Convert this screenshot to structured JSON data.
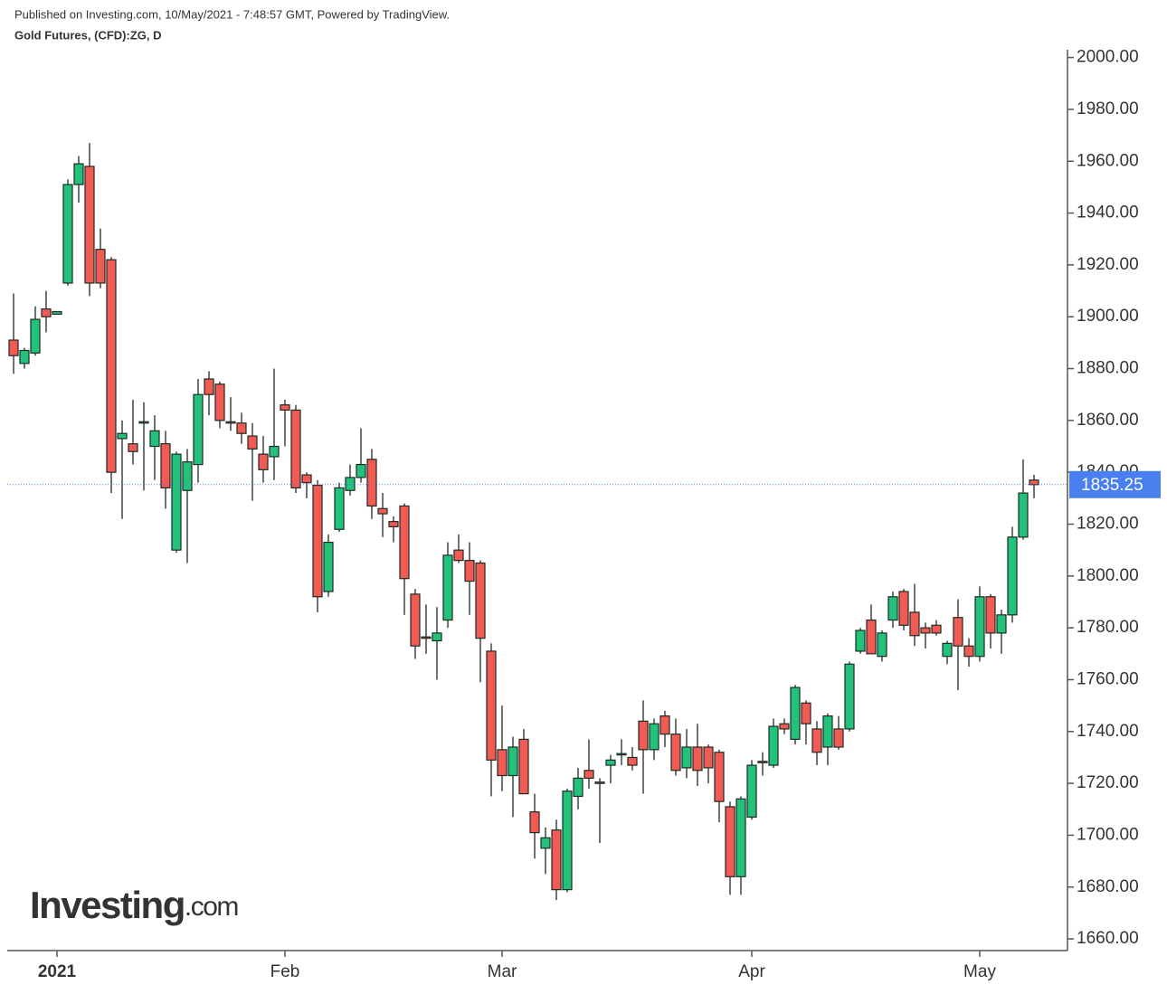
{
  "header": {
    "published": "Published on Investing.com, 10/May/2021 - 7:48:57 GMT, Powered by TradingView.",
    "symbol": "Gold Futures, (CFD):ZG, D"
  },
  "logo": {
    "brand": "Investing",
    "suffix": ".com"
  },
  "chart_data": {
    "type": "candlestick",
    "categories": [
      null,
      null,
      null,
      null,
      "2021",
      null,
      null,
      null,
      null,
      null,
      null,
      null,
      null,
      null,
      null,
      null,
      null,
      null,
      null,
      null,
      null,
      null,
      null,
      null,
      null,
      "Feb",
      null,
      null,
      null,
      null,
      null,
      null,
      null,
      null,
      null,
      null,
      null,
      null,
      null,
      null,
      null,
      null,
      null,
      null,
      null,
      "Mar",
      null,
      null,
      null,
      null,
      null,
      null,
      null,
      null,
      null,
      null,
      null,
      null,
      null,
      null,
      null,
      null,
      null,
      null,
      null,
      null,
      null,
      null,
      "Apr",
      null,
      null,
      null,
      null,
      null,
      null,
      null,
      null,
      null,
      null,
      null,
      null,
      null,
      null,
      null,
      null,
      null,
      null,
      null,
      null,
      "May",
      null,
      null,
      null,
      null,
      null
    ],
    "open": [
      1891,
      1882,
      1886,
      1903,
      1901,
      1913,
      1951,
      1958,
      1926,
      1922,
      1853,
      1851,
      1859,
      1850,
      1851,
      1810,
      1833,
      1843,
      1876,
      1874,
      1859.5,
      1859,
      1854,
      1847,
      1846,
      1866,
      1864,
      1839,
      1835,
      1794,
      1818,
      1833,
      1838,
      1845,
      1826,
      1821,
      1827,
      1793,
      1776.5,
      1775,
      1783,
      1810,
      1806,
      1805,
      1771,
      1733,
      1723,
      1737,
      1709,
      1695,
      1702,
      1679,
      1715,
      1725,
      1720.5,
      1727,
      1731,
      1730,
      1744,
      1733,
      1746,
      1739,
      1726,
      1734,
      1734,
      1732,
      1711,
      1684,
      1707,
      1728.5,
      1727,
      1743,
      1737,
      1751,
      1741,
      1734,
      1741,
      1741,
      1771,
      1783,
      1769,
      1783,
      1794,
      1786,
      1780,
      1781,
      1769,
      1784,
      1773,
      1769,
      1792,
      1778,
      1785,
      1815,
      1837
    ],
    "high": [
      1909,
      1888,
      1904,
      1910,
      1902,
      1953,
      1962,
      1967,
      1934,
      1923,
      1860,
      1868,
      1867,
      1862,
      1856,
      1848,
      1849,
      1876,
      1879,
      1875,
      1869,
      1863,
      1859,
      1854,
      1880,
      1868,
      1866,
      1840,
      1837,
      1816,
      1836,
      1843,
      1857,
      1849,
      1832,
      1823,
      1828,
      1795,
      1789,
      1788,
      1813,
      1816,
      1813,
      1806,
      1774,
      1750,
      1738,
      1741,
      1716,
      1703,
      1706,
      1718,
      1726,
      1737,
      1722,
      1731,
      1737,
      1734,
      1752,
      1745,
      1748,
      1745,
      1741,
      1743,
      1735,
      1733,
      1713,
      1715,
      1729,
      1732,
      1745,
      1745,
      1758,
      1752,
      1744,
      1747,
      1746,
      1767,
      1780,
      1789,
      1779,
      1794,
      1795,
      1797,
      1782,
      1783,
      1775,
      1791,
      1776,
      1796,
      1793,
      1787,
      1819,
      1845,
      1839
    ],
    "low": [
      1878,
      1880,
      1885,
      1894,
      1901,
      1912,
      1944,
      1908,
      1911,
      1832,
      1822,
      1843,
      1833,
      1837,
      1826,
      1809,
      1805,
      1836,
      1862,
      1857,
      1856,
      1851,
      1829,
      1836,
      1837,
      1850,
      1832,
      1830,
      1786,
      1792,
      1817,
      1831,
      1836,
      1822,
      1815,
      1813,
      1785,
      1768,
      1770,
      1760,
      1780,
      1805,
      1785,
      1759,
      1715,
      1717,
      1707,
      1716,
      1691,
      1685,
      1675,
      1678,
      1710,
      1718,
      1697,
      1720,
      1727,
      1725,
      1716,
      1729,
      1734,
      1723,
      1722,
      1719,
      1720,
      1705,
      1677,
      1677,
      1706,
      1723,
      1726,
      1739,
      1735,
      1735,
      1727,
      1727,
      1733,
      1740,
      1770,
      1770,
      1767,
      1780,
      1779,
      1773,
      1772,
      1777,
      1766,
      1756,
      1765,
      1767,
      1772,
      1770,
      1782,
      1814,
      1830
    ],
    "close": [
      1885,
      1887,
      1899,
      1900,
      1902,
      1951,
      1959,
      1913,
      1913,
      1840,
      1855,
      1848,
      1859.5,
      1856,
      1834,
      1847,
      1844,
      1870,
      1870,
      1860,
      1859,
      1855,
      1849,
      1841,
      1850,
      1864,
      1834,
      1836,
      1792,
      1813,
      1834,
      1838,
      1843,
      1827,
      1824,
      1819,
      1799,
      1773,
      1776,
      1778,
      1808,
      1806,
      1798,
      1776,
      1729,
      1723,
      1734,
      1716,
      1701,
      1699,
      1679,
      1717,
      1722,
      1722,
      1720,
      1729,
      1731.5,
      1727,
      1733,
      1743,
      1739,
      1725,
      1734,
      1725,
      1726,
      1713,
      1684,
      1714,
      1727,
      1728,
      1742,
      1741,
      1757,
      1743,
      1732,
      1746,
      1734,
      1766,
      1779,
      1770,
      1778,
      1792,
      1781,
      1777,
      1778,
      1778,
      1774,
      1773,
      1769,
      1792,
      1778,
      1785,
      1815,
      1832,
      1835.25
    ],
    "up_color": "#22c27a",
    "down_color": "#f25b53",
    "border_color": "#1f2a24",
    "ylim": [
      1655.5,
      2003
    ],
    "yticks": [
      {
        "value": 1660,
        "label": "1660.00"
      },
      {
        "value": 1680,
        "label": "1680.00"
      },
      {
        "value": 1700,
        "label": "1700.00"
      },
      {
        "value": 1720,
        "label": "1720.00"
      },
      {
        "value": 1740,
        "label": "1740.00"
      },
      {
        "value": 1760,
        "label": "1760.00"
      },
      {
        "value": 1780,
        "label": "1780.00"
      },
      {
        "value": 1800,
        "label": "1800.00"
      },
      {
        "value": 1820,
        "label": "1820.00"
      },
      {
        "value": 1840,
        "label": "1840.00"
      },
      {
        "value": 1860,
        "label": "1860.00"
      },
      {
        "value": 1880,
        "label": "1880.00"
      },
      {
        "value": 1900,
        "label": "1900.00"
      },
      {
        "value": 1920,
        "label": "1920.00"
      },
      {
        "value": 1940,
        "label": "1940.00"
      },
      {
        "value": 1960,
        "label": "1960.00"
      },
      {
        "value": 1980,
        "label": "1980.00"
      },
      {
        "value": 2000,
        "label": "2000.00"
      }
    ],
    "last_price": 1835.25,
    "last_price_color": "#4a7ff0"
  }
}
